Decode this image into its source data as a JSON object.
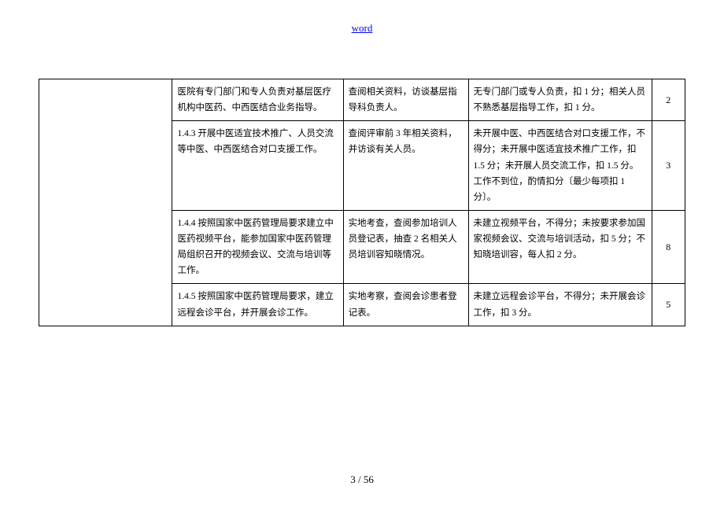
{
  "header": {
    "link_text": "word",
    "link_color": "#0000ee"
  },
  "columns": {
    "widths": {
      "c0": "160px",
      "c1": "205px",
      "c2": "150px",
      "c3": "220px",
      "c4": "40px"
    }
  },
  "rows": [
    {
      "col1": "医院有专门部门和专人负责对基层医疗机构中医药、中西医结合业务指导。",
      "col2": "查阅相关资料，访谈基层指导科负责人。",
      "col3": "无专门部门或专人负责，扣 1 分；相关人员不熟悉基层指导工作，扣 1 分。",
      "score": "2"
    },
    {
      "col1": "1.4.3 开展中医适宜技术推广、人员交流等中医、中西医结合对口支援工作。",
      "col2": "查阅评审前 3 年相关资料，并访谈有关人员。",
      "col3": "未开展中医、中西医结合对口支援工作，不得分；未开展中医适宜技术推广工作，扣 1.5 分；未开展人员交流工作，扣 1.5 分。工作不到位，酌情扣分〔最少每项扣 1 分〕。",
      "score": "3"
    },
    {
      "col1": "1.4.4 按照国家中医药管理局要求建立中医药视频平台，能参加国家中医药管理局组织召开的视频会议、交流与培训等工作。",
      "col2": "实地考查，查阅参加培训人员登记表，抽查 2 名相关人员培训容知晓情况。",
      "col3": "未建立视频平台，不得分；未按要求参加国家视频会议、交流与培训活动，扣 5 分；不知晓培训容，每人扣 2 分。",
      "score": "8"
    },
    {
      "col1": "1.4.5 按照国家中医药管理局要求，建立远程会诊平台，并开展会诊工作。",
      "col2": "实地考察，查阅会诊患者登记表。",
      "col3": "未建立远程会诊平台，不得分；未开展会诊工作，扣 3 分。",
      "score": "5"
    }
  ],
  "pager": {
    "current": "3",
    "sep": " / ",
    "total": "56"
  }
}
